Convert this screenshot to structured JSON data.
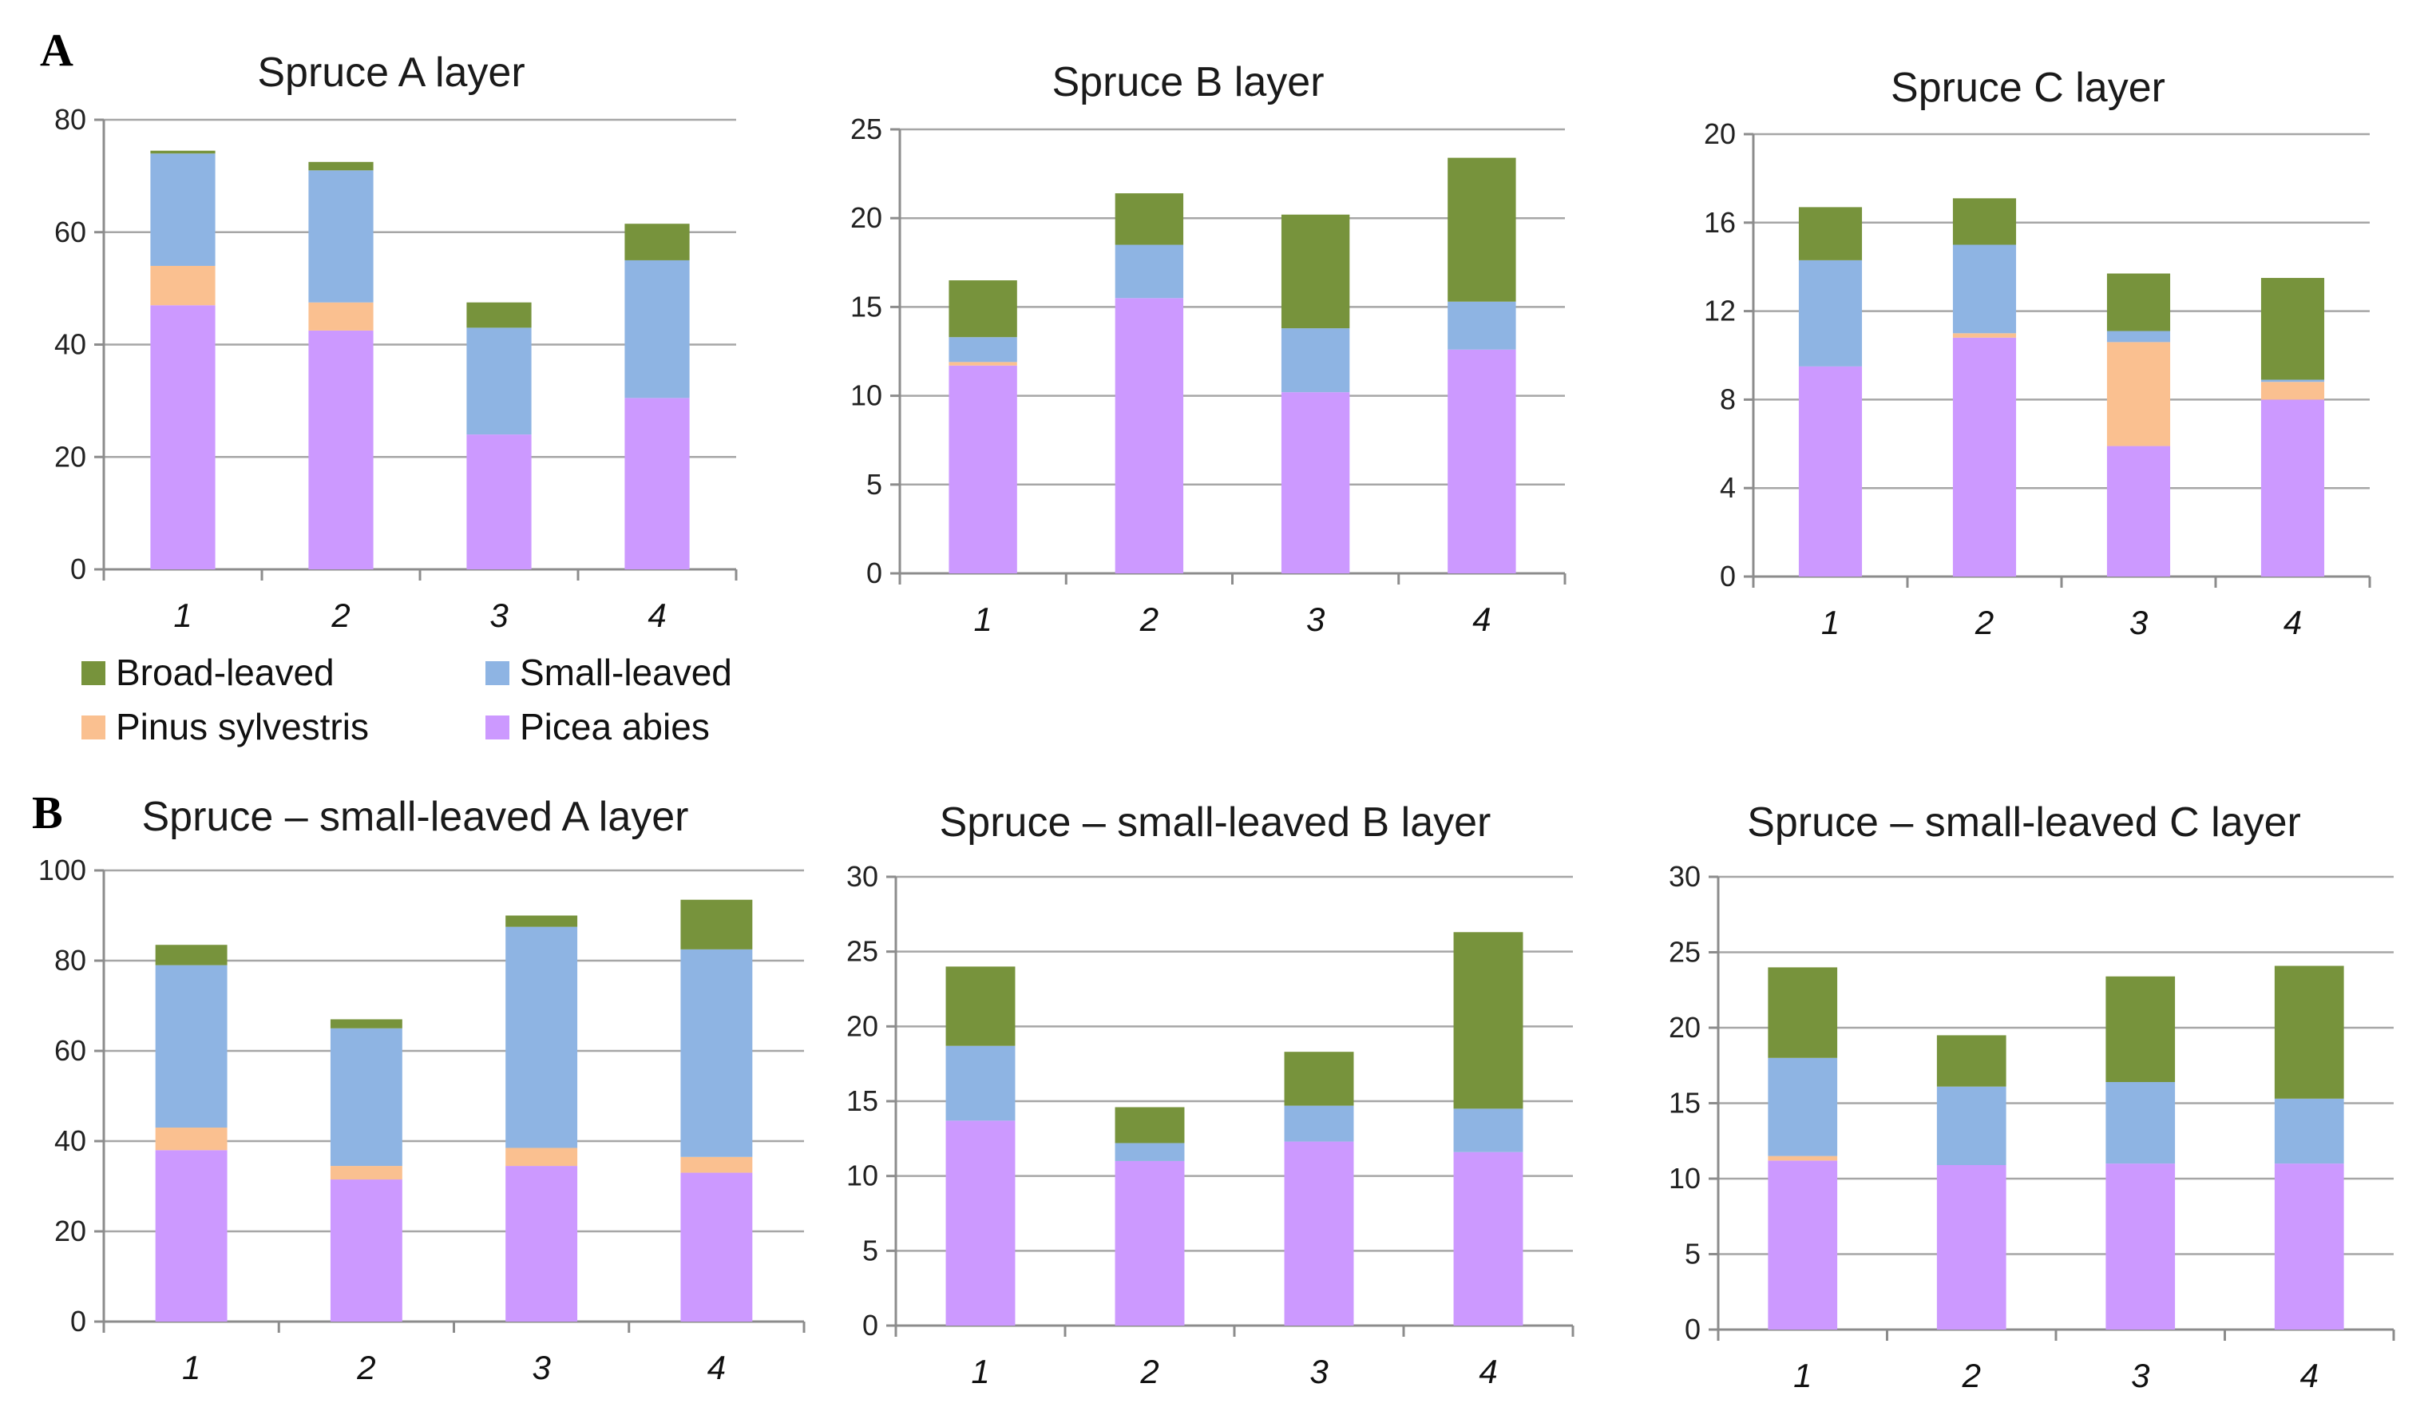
{
  "panel_labels": [
    "A",
    "B"
  ],
  "legend": [
    {
      "name": "Broad-leaved",
      "color": "#77933C"
    },
    {
      "name": "Small-leaved",
      "color": "#8EB4E3"
    },
    {
      "name": "Pinus sylvestris",
      "color": "#FAC090"
    },
    {
      "name": "Picea abies",
      "color": "#CC99FF"
    }
  ],
  "chart_data": [
    {
      "type": "bar",
      "stacked": true,
      "title": "Spruce   A layer",
      "categories": [
        "1",
        "2",
        "3",
        "4"
      ],
      "ylim": [
        0,
        80
      ],
      "yticks": [
        0,
        20,
        40,
        60,
        80
      ],
      "series": [
        {
          "name": "Picea abies",
          "color": "#CC99FF",
          "values": [
            47,
            42.5,
            24,
            30.5
          ]
        },
        {
          "name": "Pinus sylvestris",
          "color": "#FAC090",
          "values": [
            7,
            5,
            0,
            0
          ]
        },
        {
          "name": "Small-leaved",
          "color": "#8EB4E3",
          "values": [
            20,
            23.5,
            19,
            24.5
          ]
        },
        {
          "name": "Broad-leaved",
          "color": "#77933C",
          "values": [
            0.5,
            1.5,
            4.5,
            6.5
          ]
        }
      ]
    },
    {
      "type": "bar",
      "stacked": true,
      "title": "Spruce   B layer",
      "categories": [
        "1",
        "2",
        "3",
        "4"
      ],
      "ylim": [
        0,
        25
      ],
      "yticks": [
        0,
        5,
        10,
        15,
        20,
        25
      ],
      "series": [
        {
          "name": "Picea abies",
          "color": "#CC99FF",
          "values": [
            11.7,
            15.5,
            10.2,
            12.6
          ]
        },
        {
          "name": "Pinus sylvestris",
          "color": "#FAC090",
          "values": [
            0.2,
            0,
            0,
            0
          ]
        },
        {
          "name": "Small-leaved",
          "color": "#8EB4E3",
          "values": [
            1.4,
            3,
            3.6,
            2.7
          ]
        },
        {
          "name": "Broad-leaved",
          "color": "#77933C",
          "values": [
            3.2,
            2.9,
            6.4,
            8.1
          ]
        }
      ]
    },
    {
      "type": "bar",
      "stacked": true,
      "title": "Spruce   C layer",
      "categories": [
        "1",
        "2",
        "3",
        "4"
      ],
      "ylim": [
        0,
        20
      ],
      "yticks": [
        0,
        4,
        8,
        12,
        16,
        20
      ],
      "series": [
        {
          "name": "Picea abies",
          "color": "#CC99FF",
          "values": [
            9.5,
            10.8,
            5.9,
            8
          ]
        },
        {
          "name": "Pinus sylvestris",
          "color": "#FAC090",
          "values": [
            0,
            0.2,
            4.7,
            0.8
          ]
        },
        {
          "name": "Small-leaved",
          "color": "#8EB4E3",
          "values": [
            4.8,
            4,
            0.5,
            0.1
          ]
        },
        {
          "name": "Broad-leaved",
          "color": "#77933C",
          "values": [
            2.4,
            2.1,
            2.6,
            4.6
          ]
        }
      ]
    },
    {
      "type": "bar",
      "stacked": true,
      "title": "Spruce – small-leaved  A layer",
      "categories": [
        "1",
        "2",
        "3",
        "4"
      ],
      "ylim": [
        0,
        100
      ],
      "yticks": [
        0,
        20,
        40,
        60,
        80,
        100
      ],
      "series": [
        {
          "name": "Picea abies",
          "color": "#CC99FF",
          "values": [
            38,
            31.5,
            34.5,
            33
          ]
        },
        {
          "name": "Pinus sylvestris",
          "color": "#FAC090",
          "values": [
            5,
            3,
            4,
            3.5
          ]
        },
        {
          "name": "Small-leaved",
          "color": "#8EB4E3",
          "values": [
            36,
            30.5,
            49,
            46
          ]
        },
        {
          "name": "Broad-leaved",
          "color": "#77933C",
          "values": [
            4.5,
            2,
            2.5,
            11
          ]
        }
      ]
    },
    {
      "type": "bar",
      "stacked": true,
      "title": "Spruce – small-leaved  B layer",
      "categories": [
        "1",
        "2",
        "3",
        "4"
      ],
      "ylim": [
        0,
        30
      ],
      "yticks": [
        0,
        5,
        10,
        15,
        20,
        25,
        30
      ],
      "series": [
        {
          "name": "Picea abies",
          "color": "#CC99FF",
          "values": [
            13.7,
            11,
            12.3,
            11.6
          ]
        },
        {
          "name": "Pinus sylvestris",
          "color": "#FAC090",
          "values": [
            0,
            0,
            0,
            0
          ]
        },
        {
          "name": "Small-leaved",
          "color": "#8EB4E3",
          "values": [
            5,
            1.2,
            2.4,
            2.9
          ]
        },
        {
          "name": "Broad-leaved",
          "color": "#77933C",
          "values": [
            5.3,
            2.4,
            3.6,
            11.8
          ]
        }
      ]
    },
    {
      "type": "bar",
      "stacked": true,
      "title": "Spruce – small-leaved  C layer",
      "categories": [
        "1",
        "2",
        "3",
        "4"
      ],
      "ylim": [
        0,
        30
      ],
      "yticks": [
        0,
        5,
        10,
        15,
        20,
        25,
        30
      ],
      "series": [
        {
          "name": "Picea abies",
          "color": "#CC99FF",
          "values": [
            11.2,
            10.9,
            11,
            11
          ]
        },
        {
          "name": "Pinus sylvestris",
          "color": "#FAC090",
          "values": [
            0.3,
            0,
            0,
            0
          ]
        },
        {
          "name": "Small-leaved",
          "color": "#8EB4E3",
          "values": [
            6.5,
            5.2,
            5.4,
            4.3
          ]
        },
        {
          "name": "Broad-leaved",
          "color": "#77933C",
          "values": [
            6,
            3.4,
            7,
            8.8
          ]
        }
      ]
    }
  ]
}
